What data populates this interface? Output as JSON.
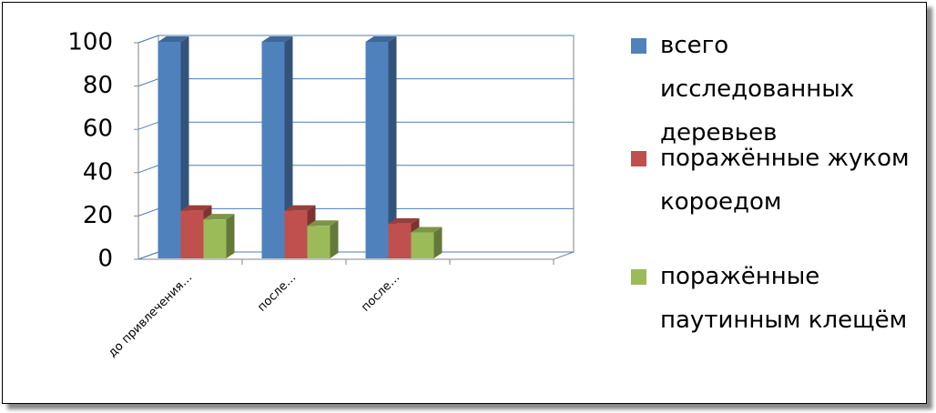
{
  "chart_data": {
    "type": "bar3d",
    "categories": [
      "до привлечения…",
      "после…",
      "после…",
      null
    ],
    "series": [
      {
        "name": "всего исследованных деревьев",
        "color": "#4f81bd",
        "values": [
          100,
          100,
          100,
          null
        ]
      },
      {
        "name": "поражённые жуком короедом",
        "color": "#c0504d",
        "values": [
          22,
          22,
          16,
          null
        ]
      },
      {
        "name": "поражённые паутинным клещём",
        "color": "#9bbb59",
        "values": [
          18,
          15,
          12,
          null
        ]
      }
    ],
    "ylim": [
      0,
      100
    ],
    "yticks": [
      0,
      20,
      40,
      60,
      80,
      100
    ],
    "grid": true,
    "legend": "right"
  }
}
